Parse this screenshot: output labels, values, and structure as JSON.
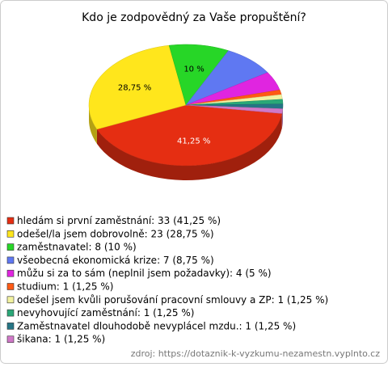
{
  "chart_data": {
    "type": "pie",
    "title": "Kdo je zodpovědný za Vaše propuštění?",
    "categories": [
      "hledám si první zaměstnání",
      "odešel/la jsem dobrovolně",
      "zaměstnavatel",
      "všeobecná ekonomická krize",
      "můžu si za to sám (neplnil jsem požadavky)",
      "studium",
      "odešel jsem kvůli porušování pracovní smlouvy a ZP",
      "nevyhovující zaměstnání",
      "Zaměstnavatel dlouhodobě nevyplácel mzdu.",
      "šikana"
    ],
    "values": [
      41.25,
      28.75,
      10,
      8.75,
      5,
      1.25,
      1.25,
      1.25,
      1.25,
      1.25
    ],
    "value_labels": [
      "41,25 %",
      "28,75 %",
      "10 %",
      null,
      null,
      null,
      null,
      null,
      null,
      null
    ],
    "legend": [
      "hledám si první zaměstnání: 33 (41,25 %)",
      "odešel/la jsem dobrovolně: 23 (28,75 %)",
      "zaměstnavatel: 8 (10 %)",
      "všeobecná ekonomická krize: 7 (8,75 %)",
      "můžu si za to sám (neplnil jsem požadavky): 4 (5 %)",
      "studium: 1 (1,25 %)",
      "odešel jsem kvůli porušování pracovní smlouvy a ZP: 1 (1,25 %)",
      "nevyhovující zaměstnání: 1 (1,25 %)",
      "Zaměstnavatel dlouhodobě nevyplácel mzdu.: 1 (1,25 %)",
      "šikana: 1 (1,25 %)"
    ],
    "colors": [
      "#e52e12",
      "#ffe61c",
      "#27d627",
      "#5f78f2",
      "#e025e0",
      "#ff5a14",
      "#f2f2a0",
      "#2aa878",
      "#257585",
      "#d078c8"
    ],
    "source": "zdroj: https://dotaznik-k-vyzkumu-nezamestn.vyplnto.cz"
  }
}
